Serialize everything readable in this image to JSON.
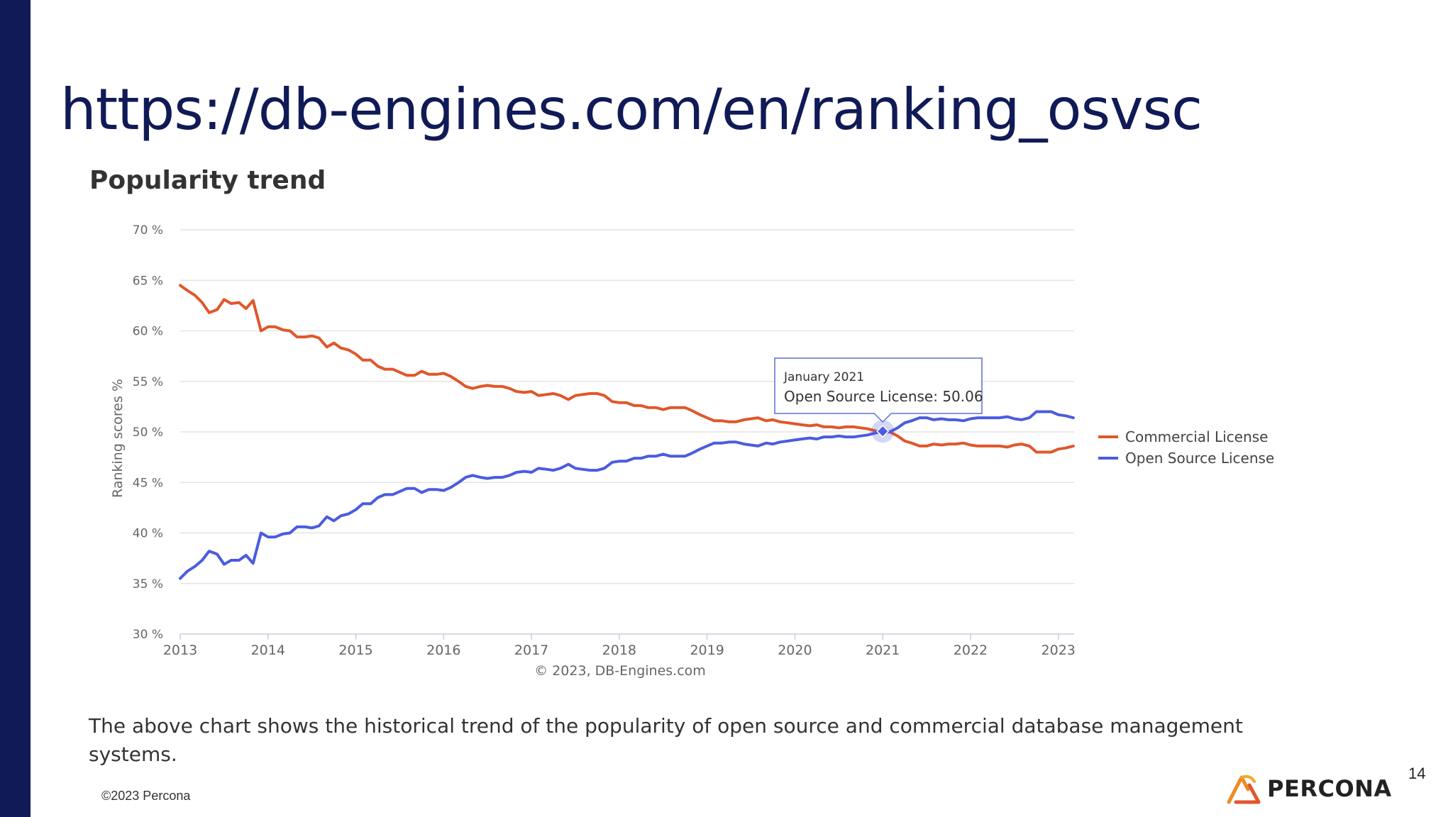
{
  "slide": {
    "title": "https://db-engines.com/en/ranking_osvsc",
    "chart_heading": "Popularity trend",
    "caption": "The above chart shows the historical trend of the popularity of open source and commercial database management systems.",
    "footer": "©2023 Percona",
    "page_number": "14",
    "logo_text": "PERCONA",
    "colors": {
      "sidebar": "#0f1a57",
      "title": "#101a56",
      "commercial": "#e0572a",
      "open_source": "#4a5ce0"
    }
  },
  "chart_data": {
    "type": "line",
    "ylabel": "Ranking scores %",
    "credits": "© 2023, DB-Engines.com",
    "ylim": [
      30,
      70
    ],
    "xlim": [
      2013,
      2023.18
    ],
    "y_ticks": [
      {
        "value": 30,
        "label": "30 %"
      },
      {
        "value": 35,
        "label": "35 %"
      },
      {
        "value": 40,
        "label": "40 %"
      },
      {
        "value": 45,
        "label": "45 %"
      },
      {
        "value": 50,
        "label": "50 %"
      },
      {
        "value": 55,
        "label": "55 %"
      },
      {
        "value": 60,
        "label": "60 %"
      },
      {
        "value": 65,
        "label": "65 %"
      },
      {
        "value": 70,
        "label": "70 %"
      }
    ],
    "x_ticks": [
      {
        "value": 2013,
        "label": "2013"
      },
      {
        "value": 2014,
        "label": "2014"
      },
      {
        "value": 2015,
        "label": "2015"
      },
      {
        "value": 2016,
        "label": "2016"
      },
      {
        "value": 2017,
        "label": "2017"
      },
      {
        "value": 2018,
        "label": "2018"
      },
      {
        "value": 2019,
        "label": "2019"
      },
      {
        "value": 2020,
        "label": "2020"
      },
      {
        "value": 2021,
        "label": "2021"
      },
      {
        "value": 2022,
        "label": "2022"
      },
      {
        "value": 2023,
        "label": "2023"
      }
    ],
    "grid": true,
    "legend_position": "right",
    "series": [
      {
        "name": "Commercial License",
        "color": "#e0572a",
        "points": [
          [
            2013.0,
            64.5
          ],
          [
            2013.08,
            64.0
          ],
          [
            2013.17,
            63.5
          ],
          [
            2013.25,
            62.8
          ],
          [
            2013.33,
            61.8
          ],
          [
            2013.42,
            62.1
          ],
          [
            2013.5,
            63.1
          ],
          [
            2013.58,
            62.7
          ],
          [
            2013.67,
            62.8
          ],
          [
            2013.75,
            62.2
          ],
          [
            2013.83,
            63.0
          ],
          [
            2013.92,
            60.0
          ],
          [
            2014.0,
            60.4
          ],
          [
            2014.08,
            60.4
          ],
          [
            2014.17,
            60.1
          ],
          [
            2014.25,
            60.0
          ],
          [
            2014.33,
            59.4
          ],
          [
            2014.42,
            59.4
          ],
          [
            2014.5,
            59.5
          ],
          [
            2014.58,
            59.3
          ],
          [
            2014.67,
            58.4
          ],
          [
            2014.75,
            58.8
          ],
          [
            2014.83,
            58.3
          ],
          [
            2014.92,
            58.1
          ],
          [
            2015.0,
            57.7
          ],
          [
            2015.08,
            57.1
          ],
          [
            2015.17,
            57.1
          ],
          [
            2015.25,
            56.5
          ],
          [
            2015.33,
            56.2
          ],
          [
            2015.42,
            56.2
          ],
          [
            2015.5,
            55.9
          ],
          [
            2015.58,
            55.6
          ],
          [
            2015.67,
            55.6
          ],
          [
            2015.75,
            56.0
          ],
          [
            2015.83,
            55.7
          ],
          [
            2015.92,
            55.7
          ],
          [
            2016.0,
            55.8
          ],
          [
            2016.08,
            55.5
          ],
          [
            2016.17,
            55.0
          ],
          [
            2016.25,
            54.5
          ],
          [
            2016.33,
            54.3
          ],
          [
            2016.42,
            54.5
          ],
          [
            2016.5,
            54.6
          ],
          [
            2016.58,
            54.5
          ],
          [
            2016.67,
            54.5
          ],
          [
            2016.75,
            54.3
          ],
          [
            2016.83,
            54.0
          ],
          [
            2016.92,
            53.9
          ],
          [
            2017.0,
            54.0
          ],
          [
            2017.08,
            53.6
          ],
          [
            2017.17,
            53.7
          ],
          [
            2017.25,
            53.8
          ],
          [
            2017.33,
            53.6
          ],
          [
            2017.42,
            53.2
          ],
          [
            2017.5,
            53.6
          ],
          [
            2017.58,
            53.7
          ],
          [
            2017.67,
            53.8
          ],
          [
            2017.75,
            53.8
          ],
          [
            2017.83,
            53.6
          ],
          [
            2017.92,
            53.0
          ],
          [
            2018.0,
            52.9
          ],
          [
            2018.08,
            52.9
          ],
          [
            2018.17,
            52.6
          ],
          [
            2018.25,
            52.6
          ],
          [
            2018.33,
            52.4
          ],
          [
            2018.42,
            52.4
          ],
          [
            2018.5,
            52.2
          ],
          [
            2018.58,
            52.4
          ],
          [
            2018.67,
            52.4
          ],
          [
            2018.75,
            52.4
          ],
          [
            2018.83,
            52.1
          ],
          [
            2018.92,
            51.7
          ],
          [
            2019.0,
            51.4
          ],
          [
            2019.08,
            51.1
          ],
          [
            2019.17,
            51.1
          ],
          [
            2019.25,
            51.0
          ],
          [
            2019.33,
            51.0
          ],
          [
            2019.42,
            51.2
          ],
          [
            2019.5,
            51.3
          ],
          [
            2019.58,
            51.4
          ],
          [
            2019.67,
            51.1
          ],
          [
            2019.75,
            51.2
          ],
          [
            2019.83,
            51.0
          ],
          [
            2019.92,
            50.9
          ],
          [
            2020.0,
            50.8
          ],
          [
            2020.08,
            50.7
          ],
          [
            2020.17,
            50.6
          ],
          [
            2020.25,
            50.7
          ],
          [
            2020.33,
            50.5
          ],
          [
            2020.42,
            50.5
          ],
          [
            2020.5,
            50.4
          ],
          [
            2020.58,
            50.5
          ],
          [
            2020.67,
            50.5
          ],
          [
            2020.75,
            50.4
          ],
          [
            2020.83,
            50.3
          ],
          [
            2020.92,
            50.1
          ],
          [
            2021.0,
            49.94
          ],
          [
            2021.08,
            50.0
          ],
          [
            2021.17,
            49.6
          ],
          [
            2021.25,
            49.1
          ],
          [
            2021.33,
            48.9
          ],
          [
            2021.42,
            48.6
          ],
          [
            2021.5,
            48.6
          ],
          [
            2021.58,
            48.8
          ],
          [
            2021.67,
            48.7
          ],
          [
            2021.75,
            48.8
          ],
          [
            2021.83,
            48.8
          ],
          [
            2021.92,
            48.9
          ],
          [
            2022.0,
            48.7
          ],
          [
            2022.08,
            48.6
          ],
          [
            2022.17,
            48.6
          ],
          [
            2022.25,
            48.6
          ],
          [
            2022.33,
            48.6
          ],
          [
            2022.42,
            48.5
          ],
          [
            2022.5,
            48.7
          ],
          [
            2022.58,
            48.8
          ],
          [
            2022.67,
            48.6
          ],
          [
            2022.75,
            48.0
          ],
          [
            2022.83,
            48.0
          ],
          [
            2022.92,
            48.0
          ],
          [
            2023.0,
            48.3
          ],
          [
            2023.08,
            48.4
          ],
          [
            2023.17,
            48.6
          ]
        ]
      },
      {
        "name": "Open Source License",
        "color": "#4a5ce0",
        "points": [
          [
            2013.0,
            35.5
          ],
          [
            2013.08,
            36.2
          ],
          [
            2013.17,
            36.7
          ],
          [
            2013.25,
            37.3
          ],
          [
            2013.33,
            38.2
          ],
          [
            2013.42,
            37.9
          ],
          [
            2013.5,
            36.9
          ],
          [
            2013.58,
            37.3
          ],
          [
            2013.67,
            37.3
          ],
          [
            2013.75,
            37.8
          ],
          [
            2013.83,
            37.0
          ],
          [
            2013.92,
            40.0
          ],
          [
            2014.0,
            39.6
          ],
          [
            2014.08,
            39.6
          ],
          [
            2014.17,
            39.9
          ],
          [
            2014.25,
            40.0
          ],
          [
            2014.33,
            40.6
          ],
          [
            2014.42,
            40.6
          ],
          [
            2014.5,
            40.5
          ],
          [
            2014.58,
            40.7
          ],
          [
            2014.67,
            41.6
          ],
          [
            2014.75,
            41.2
          ],
          [
            2014.83,
            41.7
          ],
          [
            2014.92,
            41.9
          ],
          [
            2015.0,
            42.3
          ],
          [
            2015.08,
            42.9
          ],
          [
            2015.17,
            42.9
          ],
          [
            2015.25,
            43.5
          ],
          [
            2015.33,
            43.8
          ],
          [
            2015.42,
            43.8
          ],
          [
            2015.5,
            44.1
          ],
          [
            2015.58,
            44.4
          ],
          [
            2015.67,
            44.4
          ],
          [
            2015.75,
            44.0
          ],
          [
            2015.83,
            44.3
          ],
          [
            2015.92,
            44.3
          ],
          [
            2016.0,
            44.2
          ],
          [
            2016.08,
            44.5
          ],
          [
            2016.17,
            45.0
          ],
          [
            2016.25,
            45.5
          ],
          [
            2016.33,
            45.7
          ],
          [
            2016.42,
            45.5
          ],
          [
            2016.5,
            45.4
          ],
          [
            2016.58,
            45.5
          ],
          [
            2016.67,
            45.5
          ],
          [
            2016.75,
            45.7
          ],
          [
            2016.83,
            46.0
          ],
          [
            2016.92,
            46.1
          ],
          [
            2017.0,
            46.0
          ],
          [
            2017.08,
            46.4
          ],
          [
            2017.17,
            46.3
          ],
          [
            2017.25,
            46.2
          ],
          [
            2017.33,
            46.4
          ],
          [
            2017.42,
            46.8
          ],
          [
            2017.5,
            46.4
          ],
          [
            2017.58,
            46.3
          ],
          [
            2017.67,
            46.2
          ],
          [
            2017.75,
            46.2
          ],
          [
            2017.83,
            46.4
          ],
          [
            2017.92,
            47.0
          ],
          [
            2018.0,
            47.1
          ],
          [
            2018.08,
            47.1
          ],
          [
            2018.17,
            47.4
          ],
          [
            2018.25,
            47.4
          ],
          [
            2018.33,
            47.6
          ],
          [
            2018.42,
            47.6
          ],
          [
            2018.5,
            47.8
          ],
          [
            2018.58,
            47.6
          ],
          [
            2018.67,
            47.6
          ],
          [
            2018.75,
            47.6
          ],
          [
            2018.83,
            47.9
          ],
          [
            2018.92,
            48.3
          ],
          [
            2019.0,
            48.6
          ],
          [
            2019.08,
            48.9
          ],
          [
            2019.17,
            48.9
          ],
          [
            2019.25,
            49.0
          ],
          [
            2019.33,
            49.0
          ],
          [
            2019.42,
            48.8
          ],
          [
            2019.5,
            48.7
          ],
          [
            2019.58,
            48.6
          ],
          [
            2019.67,
            48.9
          ],
          [
            2019.75,
            48.8
          ],
          [
            2019.83,
            49.0
          ],
          [
            2019.92,
            49.1
          ],
          [
            2020.0,
            49.2
          ],
          [
            2020.08,
            49.3
          ],
          [
            2020.17,
            49.4
          ],
          [
            2020.25,
            49.3
          ],
          [
            2020.33,
            49.5
          ],
          [
            2020.42,
            49.5
          ],
          [
            2020.5,
            49.6
          ],
          [
            2020.58,
            49.5
          ],
          [
            2020.67,
            49.5
          ],
          [
            2020.75,
            49.6
          ],
          [
            2020.83,
            49.7
          ],
          [
            2020.92,
            49.9
          ],
          [
            2021.0,
            50.06
          ],
          [
            2021.08,
            50.0
          ],
          [
            2021.17,
            50.4
          ],
          [
            2021.25,
            50.9
          ],
          [
            2021.33,
            51.1
          ],
          [
            2021.42,
            51.4
          ],
          [
            2021.5,
            51.4
          ],
          [
            2021.58,
            51.2
          ],
          [
            2021.67,
            51.3
          ],
          [
            2021.75,
            51.2
          ],
          [
            2021.83,
            51.2
          ],
          [
            2021.92,
            51.1
          ],
          [
            2022.0,
            51.3
          ],
          [
            2022.08,
            51.4
          ],
          [
            2022.17,
            51.4
          ],
          [
            2022.25,
            51.4
          ],
          [
            2022.33,
            51.4
          ],
          [
            2022.42,
            51.5
          ],
          [
            2022.5,
            51.3
          ],
          [
            2022.58,
            51.2
          ],
          [
            2022.67,
            51.4
          ],
          [
            2022.75,
            52.0
          ],
          [
            2022.83,
            52.0
          ],
          [
            2022.92,
            52.0
          ],
          [
            2023.0,
            51.7
          ],
          [
            2023.08,
            51.6
          ],
          [
            2023.17,
            51.4
          ]
        ]
      }
    ],
    "tooltip": {
      "x": 2021.0,
      "y": 50.06,
      "date": "January 2021",
      "text": "Open Source License: 50.06"
    }
  }
}
